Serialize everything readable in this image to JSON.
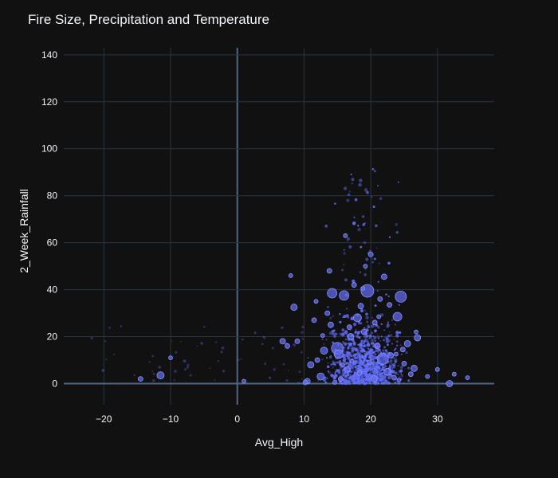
{
  "chart_data": {
    "type": "scatter",
    "title": "Fire Size, Precipitation and Temperature",
    "xlabel": "Avg_High",
    "ylabel": "2_Week_Rainfall",
    "xlim": [
      -26,
      38.5
    ],
    "ylim": [
      -9,
      143
    ],
    "xticks": [
      -20,
      -10,
      0,
      10,
      20,
      30
    ],
    "yticks": [
      0,
      20,
      40,
      60,
      80,
      100,
      120,
      140
    ],
    "grid": true,
    "legend": "none",
    "marker_color": "#636efa",
    "series": [
      {
        "x": [
          19.5,
          24.5,
          15.0,
          14.2,
          16.0,
          24.0,
          21.8,
          15.2,
          8.5,
          22.5,
          13.0,
          11.0,
          18.0,
          17.0,
          20.5,
          25.5,
          26.5,
          12.5,
          19.0,
          23.0,
          10.5,
          16.5,
          21.0,
          27.0,
          14.0,
          12.0,
          18.5,
          22.0,
          25.0,
          9.0,
          26.0,
          13.5,
          17.5,
          20.0,
          23.5,
          11.5,
          15.5,
          19.8,
          24.8,
          10.2,
          6.8,
          7.5,
          18.3,
          21.4,
          16.8,
          13.8,
          20.6,
          22.8,
          -11.5,
          -14.5,
          -10.0,
          1.0,
          31.8,
          34.5,
          32.5,
          30.0,
          28.5,
          8.0,
          12.8,
          17.2,
          19.2,
          14.6,
          23.8,
          26.8,
          21.2,
          11.8,
          16.2,
          24.2,
          18.8,
          15.8
        ],
        "y": [
          39.5,
          37.0,
          15.0,
          38.5,
          37.5,
          28.5,
          10.5,
          12.5,
          32.5,
          5.0,
          14.0,
          8.0,
          28.0,
          20.0,
          2.0,
          17.0,
          6.5,
          3.0,
          22.0,
          12.0,
          1.0,
          6.0,
          16.0,
          19.5,
          25.0,
          10.0,
          33.0,
          45.5,
          8.5,
          18.0,
          4.0,
          30.0,
          42.0,
          55.0,
          2.5,
          27.0,
          2.0,
          9.0,
          14.5,
          0.5,
          18.0,
          16.0,
          4.5,
          36.0,
          24.0,
          48.0,
          26.0,
          33.5,
          3.5,
          2.0,
          11.0,
          1.0,
          0.0,
          2.5,
          4.0,
          6.0,
          3.0,
          46.0,
          20.5,
          9.5,
          50.0,
          0.5,
          12.5,
          22.0,
          28.5,
          35.0,
          63.0,
          1.5,
          40.5,
          8.0
        ],
        "size": [
          16,
          14,
          15,
          12,
          12,
          11,
          14,
          11,
          8,
          9,
          9,
          8,
          10,
          8,
          8,
          8,
          8,
          9,
          7,
          7,
          7,
          7,
          7,
          8,
          7,
          6,
          7,
          7,
          6,
          6,
          6,
          6,
          6,
          6,
          6,
          6,
          6,
          6,
          6,
          6,
          7,
          6,
          6,
          6,
          6,
          6,
          6,
          6,
          9,
          6,
          5,
          5,
          8,
          5,
          5,
          5,
          5,
          5,
          5,
          5,
          5,
          5,
          5,
          5,
          5,
          5,
          5,
          5,
          5,
          5
        ]
      }
    ]
  }
}
